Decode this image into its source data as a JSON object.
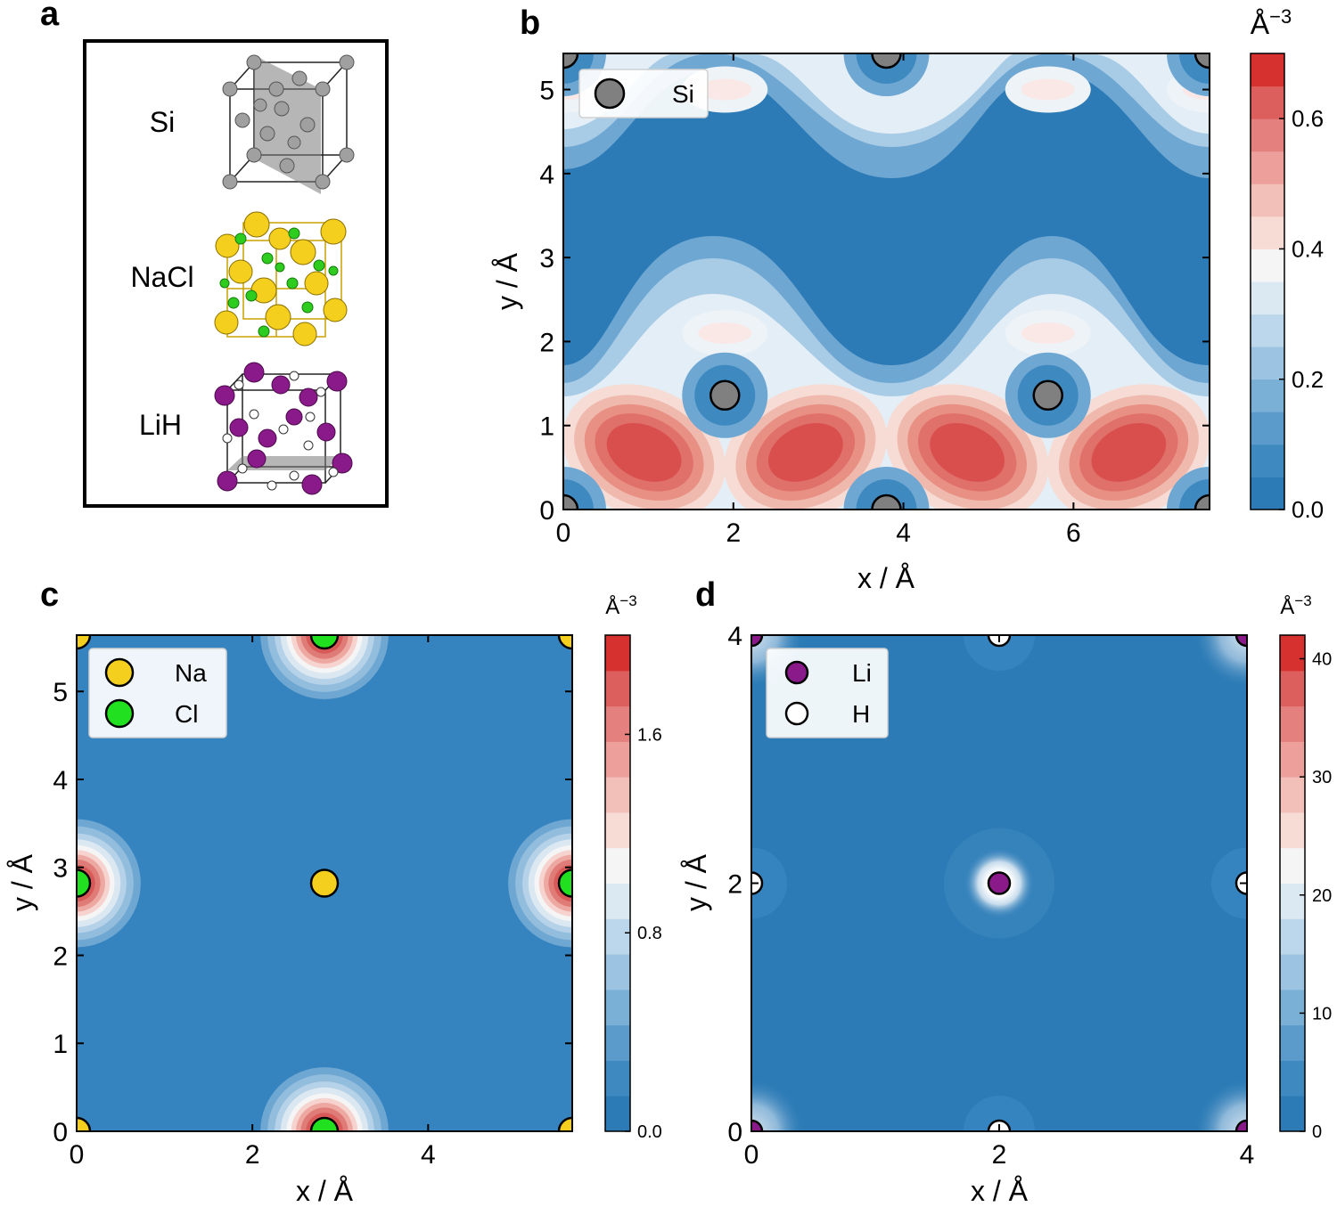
{
  "panel_labels": {
    "a": "a",
    "b": "b",
    "c": "c",
    "d": "d"
  },
  "structures": [
    {
      "label": "Si",
      "colors": [
        "#9a9a9a"
      ]
    },
    {
      "label": "NaCl",
      "colors": [
        "#f4cf1e",
        "#2ecc1f"
      ]
    },
    {
      "label": "LiH",
      "colors": [
        "#8a1a8a",
        "#ffffff"
      ]
    }
  ],
  "colormap": {
    "low": "#2c7bb6",
    "light_blue": "#d1e5f0",
    "mid": "#f7f7f7",
    "light_red": "#f4a582",
    "high": "#d6302f"
  },
  "chart_data": [
    {
      "id": "b",
      "type": "heatmap",
      "title": "",
      "xlabel": "x / Å",
      "ylabel": "y / Å",
      "xlim": [
        0,
        7.6
      ],
      "ylim": [
        0,
        5.43
      ],
      "xticks": [
        "0",
        "2",
        "4",
        "6"
      ],
      "xtick_values": [
        0,
        2,
        4,
        6
      ],
      "yticks": [
        "0",
        "1",
        "2",
        "3",
        "4",
        "5"
      ],
      "ytick_values": [
        0,
        1,
        2,
        3,
        4,
        5
      ],
      "colorbar": {
        "unit": "Å",
        "unit_sup": "−3",
        "ticks": [
          "0.0",
          "0.2",
          "0.4",
          "0.6"
        ],
        "tick_values": [
          0,
          0.2,
          0.4,
          0.6
        ],
        "range": [
          0,
          0.7
        ]
      },
      "legend": {
        "location": "top-left",
        "entries": [
          {
            "label": "Si",
            "color": "#808080"
          }
        ]
      },
      "atoms": [
        {
          "species": "Si",
          "x": 0,
          "y": 0
        },
        {
          "species": "Si",
          "x": 3.8,
          "y": 0
        },
        {
          "species": "Si",
          "x": 7.6,
          "y": 0
        },
        {
          "species": "Si",
          "x": 0,
          "y": 5.43
        },
        {
          "species": "Si",
          "x": 3.8,
          "y": 5.43
        },
        {
          "species": "Si",
          "x": 7.6,
          "y": 5.43
        },
        {
          "species": "Si",
          "x": 1.9,
          "y": 1.36
        },
        {
          "species": "Si",
          "x": 5.7,
          "y": 1.36
        }
      ],
      "bond_peaks": [
        {
          "x": 0.95,
          "y": 0.68,
          "value": 0.68
        },
        {
          "x": 2.85,
          "y": 0.68,
          "value": 0.68
        },
        {
          "x": 4.75,
          "y": 0.68,
          "value": 0.68
        },
        {
          "x": 6.65,
          "y": 0.68,
          "value": 0.68
        },
        {
          "x": 0,
          "y": 5.0,
          "value": 0.35
        },
        {
          "x": 1.9,
          "y": 5.0,
          "value": 0.35
        },
        {
          "x": 5.7,
          "y": 5.0,
          "value": 0.35
        },
        {
          "x": 7.6,
          "y": 5.0,
          "value": 0.35
        },
        {
          "x": 1.9,
          "y": 2.1,
          "value": 0.35
        },
        {
          "x": 5.7,
          "y": 2.1,
          "value": 0.35
        }
      ]
    },
    {
      "id": "c",
      "type": "heatmap",
      "title": "",
      "xlabel": "x / Å",
      "ylabel": "y / Å",
      "xlim": [
        0,
        5.64
      ],
      "ylim": [
        0,
        5.64
      ],
      "xticks": [
        "0",
        "2",
        "4"
      ],
      "xtick_values": [
        0,
        2,
        4
      ],
      "yticks": [
        "0",
        "1",
        "2",
        "3",
        "4",
        "5"
      ],
      "ytick_values": [
        0,
        1,
        2,
        3,
        4,
        5
      ],
      "colorbar": {
        "unit": "Å",
        "unit_sup": "−3",
        "ticks": [
          "0.0",
          "0.8",
          "1.6"
        ],
        "tick_values": [
          0,
          0.8,
          1.6
        ],
        "range": [
          0,
          2.0
        ]
      },
      "legend": {
        "location": "top-left",
        "entries": [
          {
            "label": "Na",
            "color": "#f4cf1e"
          },
          {
            "label": "Cl",
            "color": "#20e020"
          }
        ]
      },
      "atoms": [
        {
          "species": "Na",
          "x": 0,
          "y": 0
        },
        {
          "species": "Na",
          "x": 5.64,
          "y": 0
        },
        {
          "species": "Na",
          "x": 0,
          "y": 5.64
        },
        {
          "species": "Na",
          "x": 5.64,
          "y": 5.64
        },
        {
          "species": "Na",
          "x": 2.82,
          "y": 2.82
        },
        {
          "species": "Cl",
          "x": 2.82,
          "y": 0
        },
        {
          "species": "Cl",
          "x": 2.82,
          "y": 5.64
        },
        {
          "species": "Cl",
          "x": 0,
          "y": 2.82
        },
        {
          "species": "Cl",
          "x": 5.64,
          "y": 2.82
        }
      ],
      "shells": [
        {
          "x": 2.82,
          "y": 0
        },
        {
          "x": 2.82,
          "y": 5.64
        },
        {
          "x": 0,
          "y": 2.82
        },
        {
          "x": 5.64,
          "y": 2.82
        }
      ],
      "shell_radius": 0.6,
      "shell_peak": 1.85
    },
    {
      "id": "d",
      "type": "heatmap",
      "title": "",
      "xlabel": "x / Å",
      "ylabel": "y / Å",
      "xlim": [
        0,
        4
      ],
      "ylim": [
        0,
        4
      ],
      "xticks": [
        "0",
        "2",
        "4"
      ],
      "xtick_values": [
        0,
        2,
        4
      ],
      "yticks": [
        "0",
        "2",
        "4"
      ],
      "ytick_values": [
        0,
        2,
        4
      ],
      "colorbar": {
        "unit": "Å",
        "unit_sup": "−3",
        "ticks": [
          "0",
          "10",
          "20",
          "30",
          "40"
        ],
        "tick_values": [
          0,
          10,
          20,
          30,
          40
        ],
        "range": [
          0,
          42
        ]
      },
      "legend": {
        "location": "top-left",
        "entries": [
          {
            "label": "Li",
            "color": "#8a1a8a"
          },
          {
            "label": "H",
            "color": "#ffffff"
          }
        ]
      },
      "atoms": [
        {
          "species": "Li",
          "x": 0,
          "y": 0
        },
        {
          "species": "Li",
          "x": 4,
          "y": 0
        },
        {
          "species": "Li",
          "x": 0,
          "y": 4
        },
        {
          "species": "Li",
          "x": 4,
          "y": 4
        },
        {
          "species": "Li",
          "x": 2,
          "y": 2
        },
        {
          "species": "H",
          "x": 2,
          "y": 0
        },
        {
          "species": "H",
          "x": 2,
          "y": 4
        },
        {
          "species": "H",
          "x": 0,
          "y": 2
        },
        {
          "species": "H",
          "x": 4,
          "y": 2
        }
      ]
    }
  ]
}
